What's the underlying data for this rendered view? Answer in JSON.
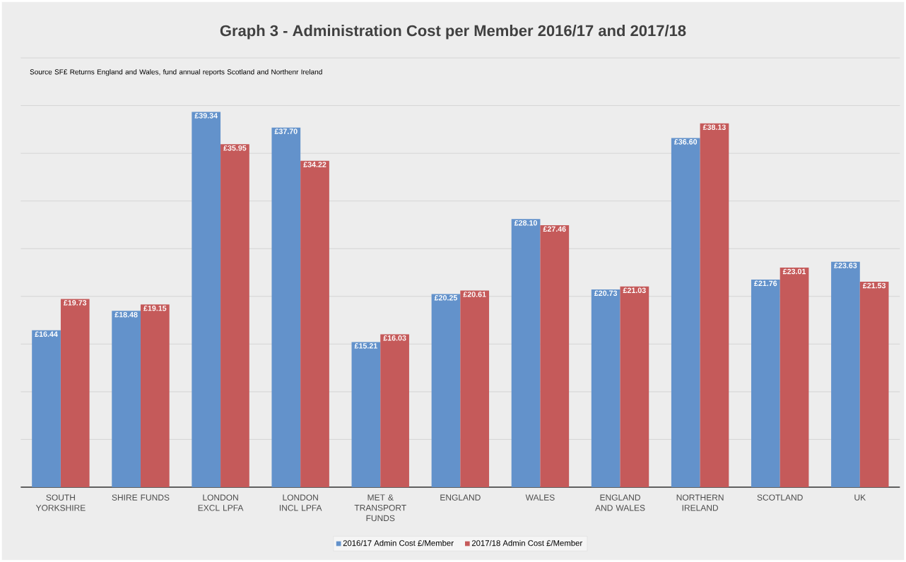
{
  "chart_data": {
    "type": "bar",
    "title": "Graph 3 - Administration Cost per Member 2016/17 and 2017/18",
    "annotations": [
      "Source SF£ Returns England and Wales, fund annual reports Scotland and Northenr Ireland"
    ],
    "categories": [
      "SOUTH YORKSHIRE",
      "SHIRE FUNDS",
      "LONDON EXCL LPFA",
      "LONDON INCL LPFA",
      "MET & TRANSPORT FUNDS",
      "ENGLAND",
      "WALES",
      "ENGLAND AND WALES",
      "NORTHERN IRELAND",
      "SCOTLAND",
      "UK"
    ],
    "series": [
      {
        "name": "2016/17 Admin Cost  £/Member",
        "color": "#6392cb",
        "values": [
          16.44,
          18.48,
          39.34,
          37.7,
          15.21,
          20.25,
          28.1,
          20.73,
          36.6,
          21.76,
          23.63
        ],
        "value_labels": [
          "£16.44",
          "£18.48",
          "£39.34",
          "£37.70",
          "£15.21",
          "£20.25",
          "£28.10",
          "£20.73",
          "£36.60",
          "£21.76",
          "£23.63"
        ]
      },
      {
        "name": "2017/18 Admin Cost  £/Member",
        "color": "#c55a5a",
        "values": [
          19.73,
          19.15,
          35.95,
          34.22,
          16.03,
          20.61,
          27.46,
          21.03,
          38.13,
          23.01,
          21.53
        ],
        "value_labels": [
          "£19.73",
          "£19.15",
          "£35.95",
          "£34.22",
          "£16.03",
          "£20.61",
          "£27.46",
          "£21.03",
          "£38.13",
          "£23.01",
          "£21.53"
        ]
      }
    ],
    "ylim": [
      0,
      45
    ],
    "yticks": [
      {
        "value": 0,
        "label": null
      },
      {
        "value": 5,
        "label": null
      },
      {
        "value": 10,
        "label": null
      },
      {
        "value": 15,
        "label": null
      },
      {
        "value": 20,
        "label": null
      },
      {
        "value": 25,
        "label": null
      },
      {
        "value": 30,
        "label": null
      },
      {
        "value": 35,
        "label": null
      },
      {
        "value": 40,
        "label": null
      },
      {
        "value": 45,
        "label": null
      }
    ],
    "grid": "y",
    "legend": "bottom",
    "tick_labels": "x"
  }
}
